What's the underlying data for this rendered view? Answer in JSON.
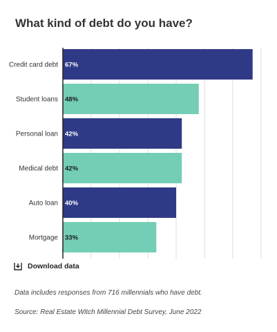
{
  "chart_data": {
    "type": "bar",
    "orientation": "horizontal",
    "title": "What kind of debt do you have?",
    "categories": [
      "Credit card debt",
      "Student loans",
      "Personal loan",
      "Medical debt",
      "Auto loan",
      "Mortgage"
    ],
    "values": [
      67,
      48,
      42,
      42,
      40,
      33
    ],
    "value_labels": [
      "67%",
      "48%",
      "42%",
      "42%",
      "40%",
      "33%"
    ],
    "xlim": [
      0,
      70
    ],
    "grid": true,
    "colors": [
      "#2f3a86",
      "#74ceb6"
    ]
  },
  "download": {
    "label": "Download data",
    "icon": "download-icon"
  },
  "footer": {
    "note": "Data includes responses from 716 millennials who have debt.",
    "source": "Source: Real Estate Witch Millennial Debt Survey, June 2022"
  }
}
